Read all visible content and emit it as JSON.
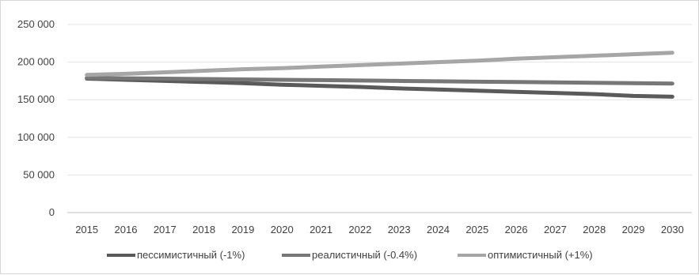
{
  "chart_data": {
    "type": "line",
    "x": [
      "2015",
      "2016",
      "2017",
      "2018",
      "2019",
      "2020",
      "2021",
      "2022",
      "2023",
      "2024",
      "2025",
      "2026",
      "2027",
      "2028",
      "2029",
      "2030"
    ],
    "ylim": [
      0,
      250000
    ],
    "yticks": [
      0,
      50000,
      100000,
      150000,
      200000,
      250000
    ],
    "ytick_labels": [
      "0",
      "50 000",
      "100 000",
      "150 000",
      "200 000",
      "250 000"
    ],
    "grid": true,
    "legend_position": "bottom",
    "series": [
      {
        "name": "пессимистичный (-1%)",
        "color": "#5a5a5a",
        "values": [
          178000,
          176500,
          175000,
          173500,
          172000,
          170000,
          168500,
          167000,
          165000,
          163500,
          162000,
          160500,
          159000,
          157500,
          155000,
          154000
        ]
      },
      {
        "name": "реалистичный (-0.4%)",
        "color": "#777777",
        "values": [
          179000,
          178500,
          178000,
          177500,
          177000,
          176500,
          176000,
          175500,
          175000,
          174500,
          174000,
          173500,
          173000,
          172500,
          172000,
          171500
        ]
      },
      {
        "name": "оптимистичный (+1%)",
        "color": "#a6a6a6",
        "values": [
          183000,
          184500,
          186500,
          188500,
          190500,
          192000,
          194000,
          196000,
          198000,
          200000,
          202000,
          204500,
          206500,
          208500,
          210500,
          212500
        ]
      }
    ]
  }
}
